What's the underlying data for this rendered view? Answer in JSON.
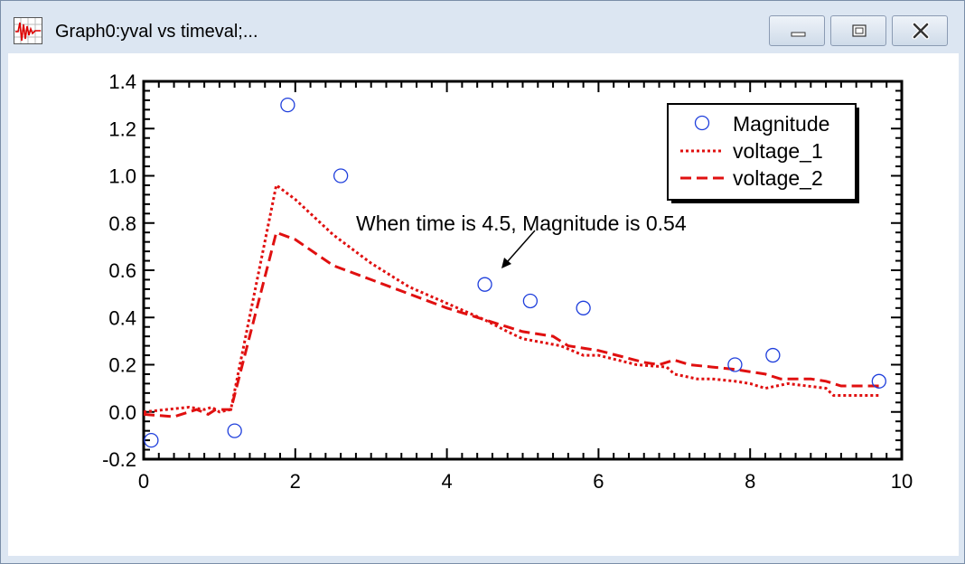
{
  "window": {
    "title": "Graph0:yval vs timeval;...",
    "icons": {
      "app": "graph-icon",
      "minimize": "minimize-icon",
      "maximize": "maximize-icon",
      "close": "close-icon"
    }
  },
  "chart_data": {
    "type": "scatter",
    "title": "",
    "xlabel": "",
    "ylabel": "",
    "xlim": [
      0,
      10
    ],
    "ylim": [
      -0.2,
      1.4
    ],
    "xticks": [
      "0",
      "2",
      "4",
      "6",
      "8",
      "10"
    ],
    "yticks": [
      "-0.2",
      "0.0",
      "0.2",
      "0.4",
      "0.6",
      "0.8",
      "1.0",
      "1.2",
      "1.4"
    ],
    "grid": false,
    "legend_position": "top-right",
    "series": [
      {
        "name": "Magnitude",
        "mode": "markers",
        "marker": "open-circle",
        "color": "#1f3fdc",
        "x": [
          0.1,
          1.2,
          1.9,
          2.6,
          4.5,
          5.1,
          5.8,
          7.8,
          8.3,
          9.7
        ],
        "y": [
          -0.12,
          -0.08,
          1.3,
          1.0,
          0.54,
          0.47,
          0.44,
          0.2,
          0.24,
          0.13
        ]
      },
      {
        "name": "voltage_1",
        "mode": "line",
        "dash": "dotted",
        "color": "#e01010",
        "x": [
          0.0,
          0.3,
          0.6,
          0.8,
          0.9,
          1.0,
          1.15,
          1.75,
          2.0,
          2.5,
          3.0,
          3.5,
          4.0,
          4.5,
          4.8,
          5.0,
          5.5,
          5.8,
          6.0,
          6.5,
          6.9,
          7.0,
          7.3,
          7.5,
          7.8,
          8.0,
          8.2,
          8.5,
          9.0,
          9.1,
          9.3,
          9.5,
          9.7
        ],
        "y": [
          0.0,
          0.01,
          0.02,
          0.01,
          0.02,
          0.0,
          0.01,
          0.96,
          0.9,
          0.75,
          0.63,
          0.53,
          0.46,
          0.39,
          0.34,
          0.31,
          0.28,
          0.24,
          0.24,
          0.2,
          0.19,
          0.16,
          0.14,
          0.14,
          0.13,
          0.12,
          0.1,
          0.12,
          0.1,
          0.07,
          0.07,
          0.07,
          0.07
        ]
      },
      {
        "name": "voltage_2",
        "mode": "line",
        "dash": "dashed",
        "color": "#e01010",
        "x": [
          0.0,
          0.4,
          0.7,
          0.85,
          0.95,
          1.15,
          1.75,
          2.0,
          2.5,
          3.0,
          3.5,
          4.0,
          4.4,
          4.8,
          5.0,
          5.4,
          5.6,
          6.0,
          6.6,
          6.8,
          7.0,
          7.2,
          7.5,
          7.8,
          8.2,
          8.4,
          8.8,
          9.0,
          9.2,
          9.5,
          9.7
        ],
        "y": [
          -0.01,
          -0.02,
          0.01,
          -0.01,
          0.01,
          0.01,
          0.76,
          0.73,
          0.62,
          0.56,
          0.5,
          0.44,
          0.4,
          0.36,
          0.34,
          0.32,
          0.28,
          0.26,
          0.21,
          0.2,
          0.22,
          0.2,
          0.19,
          0.18,
          0.16,
          0.14,
          0.14,
          0.13,
          0.11,
          0.11,
          0.11
        ]
      }
    ],
    "annotations": [
      {
        "text": "When time is 4.5, Magnitude is 0.54",
        "x": 4.5,
        "y": 0.54
      }
    ]
  }
}
